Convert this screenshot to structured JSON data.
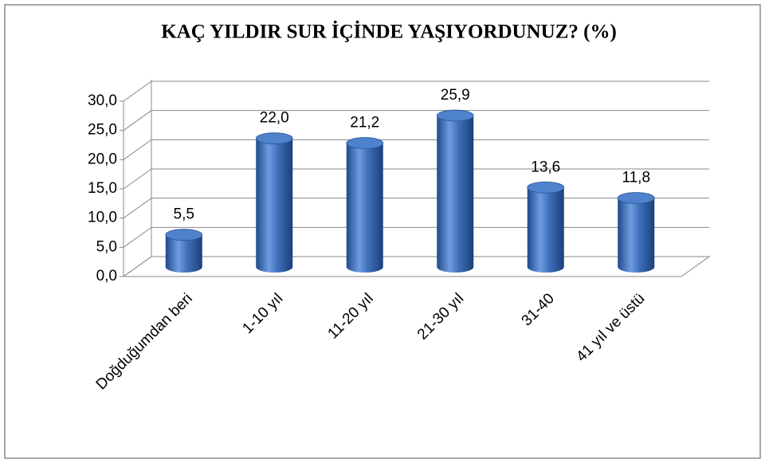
{
  "chart_data": {
    "type": "bar",
    "title": "KAÇ YILDIR SUR İÇİNDE YAŞIYORDUNUZ?  (%)",
    "categories": [
      "Doğduğumdan beri",
      "1-10 yıl",
      "11-20 yıl",
      "21-30 yıl",
      "31-40",
      "41 yıl ve üstü"
    ],
    "values": [
      5.5,
      22.0,
      21.2,
      25.9,
      13.6,
      11.8
    ],
    "value_labels": [
      "5,5",
      "22,0",
      "21,2",
      "25,9",
      "13,6",
      "11,8"
    ],
    "color": "#3d6fb8",
    "ylim": [
      0,
      30
    ],
    "yticks": [
      {
        "value": 0,
        "label": "0,0"
      },
      {
        "value": 5,
        "label": "5,0"
      },
      {
        "value": 10,
        "label": "10,0"
      },
      {
        "value": 15,
        "label": "15,0"
      },
      {
        "value": 20,
        "label": "20,0"
      },
      {
        "value": 25,
        "label": "25,0"
      },
      {
        "value": 30,
        "label": "30,0"
      }
    ],
    "grid": true
  }
}
